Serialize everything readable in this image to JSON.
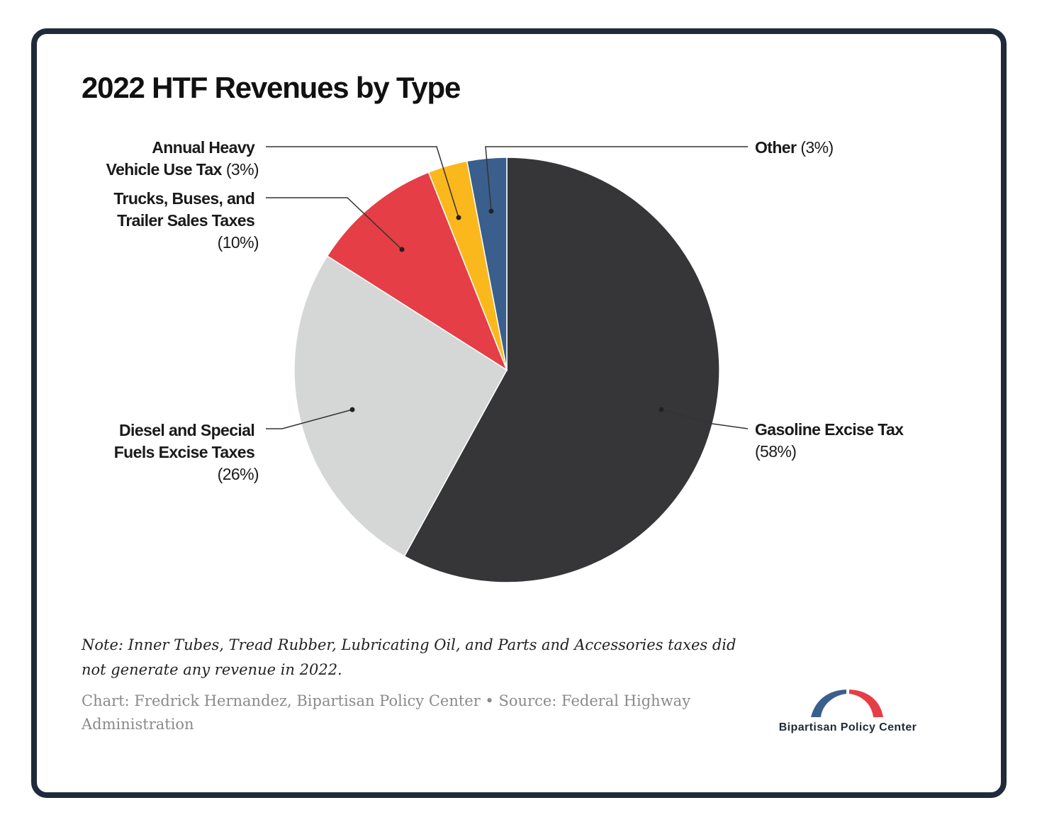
{
  "chart_data": {
    "type": "pie",
    "title": "2022 HTF Revenues by Type",
    "slices": [
      {
        "label": "Gasoline Excise Tax",
        "value": 58,
        "pct_label": "(58%)",
        "color": "#363638"
      },
      {
        "label": "Diesel and Special Fuels Excise Taxes",
        "value": 26,
        "pct_label": "(26%)",
        "color": "#d5d7d6"
      },
      {
        "label": "Trucks, Buses, and Trailer Sales Taxes",
        "value": 10,
        "pct_label": "(10%)",
        "color": "#e53e46"
      },
      {
        "label": "Annual Heavy Vehicle Use Tax",
        "value": 3,
        "pct_label": "(3%)",
        "color": "#fbb81c"
      },
      {
        "label": "Other",
        "value": 3,
        "pct_label": "(3%)",
        "color": "#3a5f8c"
      }
    ]
  },
  "labels": {
    "gasoline": {
      "line1": "Gasoline Excise Tax",
      "pct": "(58%)"
    },
    "diesel": {
      "line1": "Diesel and Special",
      "line2": "Fuels Excise Taxes",
      "pct": "(26%)"
    },
    "trucks": {
      "line1": "Trucks, Buses, and",
      "line2": "Trailer Sales Taxes",
      "pct": "(10%)"
    },
    "hvut": {
      "line1": "Annual Heavy",
      "line2": "Vehicle Use Tax",
      "pct": "(3%)"
    },
    "other": {
      "line1": "Other",
      "pct": "(3%)"
    }
  },
  "note": "Note: Inner Tubes, Tread Rubber, Lubricating Oil, and Parts and Accessories taxes did not generate any revenue in 2022.",
  "credit": "Chart: Fredrick Hernandez, Bipartisan Policy Center • Source: Federal Highway Administration",
  "logo": {
    "text": "Bipartisan Policy Center",
    "blue": "#3a5f8c",
    "red": "#e53e46"
  }
}
